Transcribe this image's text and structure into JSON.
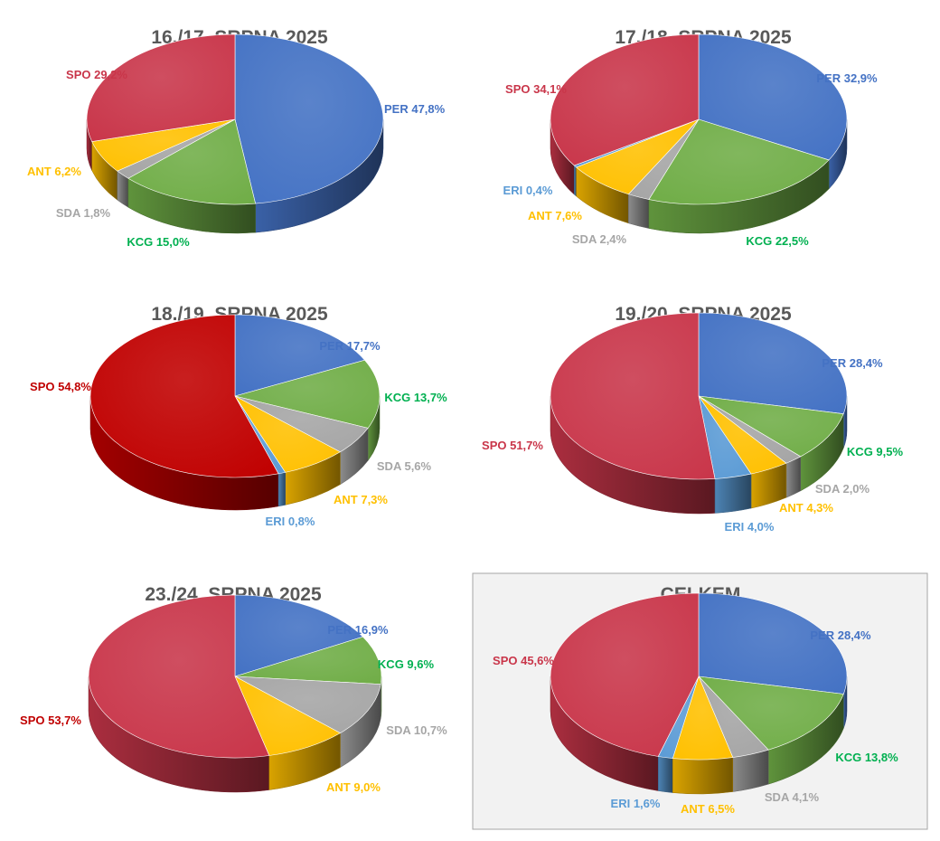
{
  "colors": {
    "PER": "#4472C4",
    "KCG": "#70AD47",
    "SDA": "#A5A5A5",
    "ANT": "#FFC000",
    "ERI": "#5B9BD5",
    "SPO": "#C9364A",
    "SPO_alt": "#C00000"
  },
  "label_colors": {
    "PER": "#4472C4",
    "KCG": "#00B050",
    "SDA": "#A6A6A6",
    "ANT": "#FFC000",
    "ERI": "#5B9BD5",
    "SPO": "#C9364A",
    "SPO_alt": "#C00000"
  },
  "chart_data": [
    {
      "type": "pie",
      "title": "16./17. SRPNA 2025",
      "slices": [
        {
          "name": "PER",
          "value": 47.8,
          "label": "PER 47,8%"
        },
        {
          "name": "KCG",
          "value": 15.0,
          "label": "KCG 15,0%"
        },
        {
          "name": "SDA",
          "value": 1.8,
          "label": "SDA 1,8%"
        },
        {
          "name": "ANT",
          "value": 6.2,
          "label": "ANT 6,2%"
        },
        {
          "name": "SPO",
          "value": 29.2,
          "label": "SPO 29,2%"
        }
      ]
    },
    {
      "type": "pie",
      "title": "17./18. SRPNA 2025",
      "slices": [
        {
          "name": "PER",
          "value": 32.9,
          "label": "PER 32,9%"
        },
        {
          "name": "KCG",
          "value": 22.5,
          "label": "KCG 22,5%"
        },
        {
          "name": "SDA",
          "value": 2.4,
          "label": "SDA 2,4%"
        },
        {
          "name": "ANT",
          "value": 7.6,
          "label": "ANT 7,6%"
        },
        {
          "name": "ERI",
          "value": 0.4,
          "label": "ERI 0,4%"
        },
        {
          "name": "SPO",
          "value": 34.1,
          "label": "SPO 34,1%"
        }
      ]
    },
    {
      "type": "pie",
      "title": "18./19. SRPNA 2025",
      "slices": [
        {
          "name": "PER",
          "value": 17.7,
          "label": "PER 17,7%"
        },
        {
          "name": "KCG",
          "value": 13.7,
          "label": "KCG 13,7%"
        },
        {
          "name": "SDA",
          "value": 5.6,
          "label": "SDA 5,6%"
        },
        {
          "name": "ANT",
          "value": 7.3,
          "label": "ANT 7,3%"
        },
        {
          "name": "ERI",
          "value": 0.8,
          "label": "ERI 0,8%"
        },
        {
          "name": "SPO",
          "value": 54.8,
          "label": "SPO 54,8%",
          "color_key": "SPO_alt"
        }
      ]
    },
    {
      "type": "pie",
      "title": "19./20. SRPNA 2025",
      "slices": [
        {
          "name": "PER",
          "value": 28.4,
          "label": "PER 28,4%"
        },
        {
          "name": "KCG",
          "value": 9.5,
          "label": "KCG 9,5%"
        },
        {
          "name": "SDA",
          "value": 2.0,
          "label": "SDA 2,0%"
        },
        {
          "name": "ANT",
          "value": 4.3,
          "label": "ANT 4,3%"
        },
        {
          "name": "ERI",
          "value": 4.0,
          "label": "ERI 4,0%"
        },
        {
          "name": "SPO",
          "value": 51.7,
          "label": "SPO 51,7%"
        }
      ]
    },
    {
      "type": "pie",
      "title": "23./24. SRPNA 2025",
      "slices": [
        {
          "name": "PER",
          "value": 16.9,
          "label": "PER 16,9%"
        },
        {
          "name": "KCG",
          "value": 9.6,
          "label": "KCG 9,6%"
        },
        {
          "name": "SDA",
          "value": 10.7,
          "label": "SDA 10,7%"
        },
        {
          "name": "ANT",
          "value": 9.0,
          "label": "ANT 9,0%"
        },
        {
          "name": "SPO",
          "value": 53.7,
          "label": "SPO 53,7%",
          "label_color_key": "SPO_alt"
        }
      ]
    },
    {
      "type": "pie",
      "title": "CELKEM",
      "boxed": true,
      "slices": [
        {
          "name": "PER",
          "value": 28.4,
          "label": "PER 28,4%"
        },
        {
          "name": "KCG",
          "value": 13.8,
          "label": "KCG 13,8%"
        },
        {
          "name": "SDA",
          "value": 4.1,
          "label": "SDA 4,1%"
        },
        {
          "name": "ANT",
          "value": 6.5,
          "label": "ANT 6,5%"
        },
        {
          "name": "ERI",
          "value": 1.6,
          "label": "ERI 1,6%"
        },
        {
          "name": "SPO",
          "value": 45.6,
          "label": "SPO 45,6%"
        }
      ]
    }
  ]
}
